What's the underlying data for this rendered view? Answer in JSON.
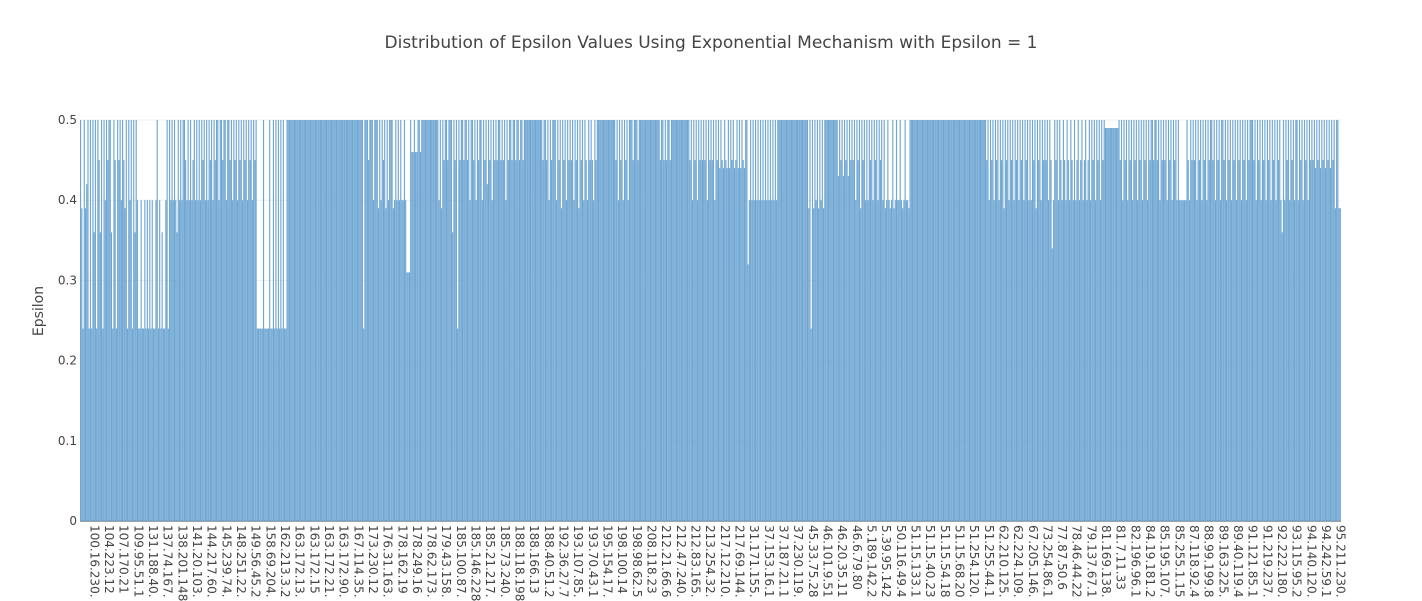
{
  "chart_data": {
    "type": "bar",
    "title": "Distribution of Epsilon Values Using Exponential Mechanism with Epsilon = 1",
    "xlabel": "",
    "ylabel": "Epsilon",
    "ylim": [
      0,
      0.5
    ],
    "yticks": [
      0,
      0.1,
      0.2,
      0.3,
      0.4,
      0.5
    ],
    "ytick_labels": [
      "0",
      "0.1",
      "0.2",
      "0.3",
      "0.4",
      "0.5"
    ],
    "xtick_labels": [
      "100.16.230.",
      "104.223.12",
      "107.170.21",
      "109.95.51.1",
      "131.188.40.",
      "137.74.167.",
      "138.201.148",
      "141.20.103.",
      "144.217.60.",
      "145.239.74.",
      "148.251.22.",
      "149.56.45.2",
      "158.69.204.",
      "162.213.3.2",
      "163.172.13.",
      "163.172.15",
      "163.172.21.",
      "163.172.90.",
      "167.114.35.",
      "173.230.12",
      "176.31.163.",
      "178.162.19",
      "178.249.16",
      "178.62.173.",
      "179.43.158.",
      "185.100.87.",
      "185.146.228",
      "185.21.217.",
      "185.73.240.",
      "188.118.198",
      "188.166.13",
      "188.40.51.2",
      "192.36.27.7",
      "193.107.85.",
      "193.70.43.1",
      "195.154.17.",
      "198.100.14",
      "198.98.62.5",
      "208.118.23",
      "212.21.66.6",
      "212.47.240.",
      "212.83.165.",
      "213.254.32.",
      "217.12.210.",
      "217.69.144.",
      "31.171.155.",
      "37.153.16.1",
      "37.187.21.1",
      "37.230.119.",
      "45.33.75.28",
      "46.101.9.51",
      "46.20.35.11",
      "46.6.79.80",
      "5.189.142.2",
      "5.39.95.142",
      "50.116.49.4",
      "51.15.133.1",
      "51.15.40.23",
      "51.15.54.18",
      "51.15.68.20",
      "51.254.120.",
      "51.255.44.1",
      "62.210.125.",
      "62.224.109.",
      "67.205.146.",
      "73.254.86.1",
      "77.87.50.6",
      "78.46.44.22",
      "79.137.67.1",
      "81.169.138.",
      "81.7.11.33",
      "82.196.96.1",
      "84.19.181.2",
      "85.195.107.",
      "85.255.1.15",
      "87.118.92.4",
      "88.99.199.8",
      "89.163.225.",
      "89.40.119.4",
      "91.121.85.1",
      "91.219.237.",
      "92.222.180.",
      "93.115.95.2",
      "94.140.120.",
      "94.242.59.1",
      "95.211.230."
    ],
    "values_per_category": 12,
    "values": [
      0.5,
      0.39,
      0.24,
      0.5,
      0.39,
      0.42,
      0.5,
      0.24,
      0.5,
      0.24,
      0.5,
      0.36,
      0.5,
      0.24,
      0.5,
      0.45,
      0.36,
      0.5,
      0.24,
      0.5,
      0.4,
      0.5,
      0.45,
      0.5,
      0.5,
      0.36,
      0.24,
      0.5,
      0.45,
      0.24,
      0.5,
      0.45,
      0.5,
      0.4,
      0.5,
      0.45,
      0.39,
      0.5,
      0.24,
      0.5,
      0.4,
      0.5,
      0.24,
      0.5,
      0.36,
      0.5,
      0.4,
      0.24,
      0.24,
      0.4,
      0.24,
      0.24,
      0.4,
      0.24,
      0.4,
      0.24,
      0.4,
      0.24,
      0.4,
      0.24,
      0.24,
      0.4,
      0.5,
      0.24,
      0.4,
      0.24,
      0.36,
      0.24,
      0.24,
      0.4,
      0.5,
      0.24,
      0.5,
      0.4,
      0.5,
      0.4,
      0.5,
      0.4,
      0.36,
      0.5,
      0.4,
      0.5,
      0.4,
      0.5,
      0.5,
      0.45,
      0.4,
      0.5,
      0.4,
      0.5,
      0.4,
      0.45,
      0.5,
      0.4,
      0.5,
      0.4,
      0.5,
      0.4,
      0.5,
      0.45,
      0.5,
      0.4,
      0.5,
      0.4,
      0.5,
      0.45,
      0.5,
      0.4,
      0.5,
      0.45,
      0.5,
      0.5,
      0.4,
      0.5,
      0.5,
      0.45,
      0.5,
      0.5,
      0.4,
      0.5,
      0.5,
      0.45,
      0.5,
      0.4,
      0.5,
      0.45,
      0.5,
      0.4,
      0.5,
      0.45,
      0.5,
      0.4,
      0.5,
      0.45,
      0.5,
      0.4,
      0.5,
      0.45,
      0.5,
      0.4,
      0.5,
      0.45,
      0.5,
      0.24,
      0.24,
      0.24,
      0.24,
      0.24,
      0.5,
      0.24,
      0.24,
      0.24,
      0.24,
      0.5,
      0.24,
      0.24,
      0.5,
      0.24,
      0.5,
      0.24,
      0.5,
      0.24,
      0.5,
      0.24,
      0.5,
      0.24,
      0.24,
      0.5,
      0.5,
      0.5,
      0.5,
      0.5,
      0.5,
      0.5,
      0.5,
      0.5,
      0.5,
      0.5,
      0.5,
      0.5,
      0.5,
      0.5,
      0.5,
      0.5,
      0.5,
      0.5,
      0.5,
      0.5,
      0.5,
      0.5,
      0.5,
      0.5,
      0.5,
      0.5,
      0.5,
      0.5,
      0.5,
      0.5,
      0.5,
      0.5,
      0.5,
      0.5,
      0.5,
      0.5,
      0.5,
      0.5,
      0.5,
      0.5,
      0.5,
      0.5,
      0.5,
      0.5,
      0.5,
      0.5,
      0.5,
      0.5,
      0.5,
      0.5,
      0.5,
      0.5,
      0.5,
      0.5,
      0.5,
      0.5,
      0.5,
      0.5,
      0.5,
      0.5,
      0.5,
      0.24,
      0.5,
      0.5,
      0.5,
      0.45,
      0.5,
      0.5,
      0.5,
      0.4,
      0.5,
      0.5,
      0.5,
      0.39,
      0.5,
      0.4,
      0.5,
      0.45,
      0.5,
      0.39,
      0.5,
      0.4,
      0.5,
      0.5,
      0.5,
      0.39,
      0.4,
      0.5,
      0.4,
      0.5,
      0.4,
      0.5,
      0.4,
      0.4,
      0.5,
      0.4,
      0.31,
      0.31,
      0.31,
      0.5,
      0.46,
      0.46,
      0.5,
      0.46,
      0.46,
      0.5,
      0.5,
      0.46,
      0.5,
      0.5,
      0.5,
      0.5,
      0.5,
      0.5,
      0.5,
      0.5,
      0.5,
      0.5,
      0.5,
      0.5,
      0.5,
      0.5,
      0.4,
      0.5,
      0.39,
      0.5,
      0.45,
      0.5,
      0.5,
      0.45,
      0.5,
      0.5,
      0.5,
      0.36,
      0.5,
      0.45,
      0.5,
      0.24,
      0.5,
      0.45,
      0.5,
      0.5,
      0.45,
      0.5,
      0.5,
      0.45,
      0.5,
      0.4,
      0.5,
      0.5,
      0.45,
      0.5,
      0.4,
      0.5,
      0.45,
      0.5,
      0.5,
      0.4,
      0.5,
      0.45,
      0.5,
      0.42,
      0.5,
      0.45,
      0.5,
      0.4,
      0.5,
      0.45,
      0.5,
      0.45,
      0.5,
      0.5,
      0.45,
      0.5,
      0.45,
      0.5,
      0.4,
      0.5,
      0.45,
      0.5,
      0.5,
      0.45,
      0.5,
      0.5,
      0.45,
      0.5,
      0.5,
      0.45,
      0.5,
      0.5,
      0.45,
      0.5,
      0.5,
      0.5,
      0.5,
      0.5,
      0.5,
      0.5,
      0.5,
      0.5,
      0.5,
      0.5,
      0.5,
      0.5,
      0.5,
      0.5,
      0.45,
      0.5,
      0.5,
      0.45,
      0.5,
      0.4,
      0.5,
      0.45,
      0.5,
      0.5,
      0.5,
      0.4,
      0.5,
      0.45,
      0.5,
      0.39,
      0.5,
      0.45,
      0.5,
      0.4,
      0.5,
      0.45,
      0.5,
      0.45,
      0.5,
      0.4,
      0.5,
      0.45,
      0.5,
      0.39,
      0.5,
      0.45,
      0.5,
      0.4,
      0.5,
      0.45,
      0.4,
      0.5,
      0.45,
      0.5,
      0.45,
      0.4,
      0.5,
      0.45,
      0.5,
      0.5,
      0.5,
      0.5,
      0.5,
      0.5,
      0.5,
      0.5,
      0.5,
      0.5,
      0.5,
      0.5,
      0.5,
      0.5,
      0.5,
      0.45,
      0.5,
      0.4,
      0.5,
      0.45,
      0.5,
      0.4,
      0.5,
      0.45,
      0.5,
      0.4,
      0.5,
      0.5,
      0.5,
      0.45,
      0.5,
      0.5,
      0.5,
      0.45,
      0.5,
      0.5,
      0.5,
      0.5,
      0.5,
      0.5,
      0.5,
      0.5,
      0.5,
      0.5,
      0.5,
      0.5,
      0.5,
      0.5,
      0.5,
      0.5,
      0.5,
      0.45,
      0.5,
      0.5,
      0.45,
      0.5,
      0.45,
      0.5,
      0.5,
      0.45,
      0.5,
      0.5,
      0.5,
      0.5,
      0.5,
      0.5,
      0.5,
      0.5,
      0.5,
      0.5,
      0.5,
      0.5,
      0.5,
      0.5,
      0.5,
      0.45,
      0.5,
      0.4,
      0.5,
      0.45,
      0.5,
      0.4,
      0.5,
      0.45,
      0.5,
      0.45,
      0.5,
      0.45,
      0.5,
      0.4,
      0.5,
      0.45,
      0.5,
      0.45,
      0.5,
      0.4,
      0.5,
      0.45,
      0.5,
      0.44,
      0.5,
      0.45,
      0.44,
      0.5,
      0.45,
      0.44,
      0.5,
      0.44,
      0.5,
      0.45,
      0.5,
      0.44,
      0.45,
      0.5,
      0.44,
      0.5,
      0.44,
      0.5,
      0.45,
      0.44,
      0.5,
      0.5,
      0.32,
      0.4,
      0.5,
      0.4,
      0.5,
      0.4,
      0.5,
      0.4,
      0.5,
      0.4,
      0.5,
      0.4,
      0.5,
      0.4,
      0.5,
      0.4,
      0.5,
      0.4,
      0.5,
      0.4,
      0.5,
      0.4,
      0.5,
      0.4,
      0.5,
      0.5,
      0.5,
      0.5,
      0.5,
      0.5,
      0.5,
      0.5,
      0.5,
      0.5,
      0.5,
      0.5,
      0.5,
      0.5,
      0.5,
      0.5,
      0.5,
      0.5,
      0.5,
      0.5,
      0.5,
      0.5,
      0.5,
      0.5,
      0.5,
      0.39,
      0.5,
      0.24,
      0.5,
      0.39,
      0.5,
      0.4,
      0.5,
      0.39,
      0.5,
      0.4,
      0.5,
      0.39,
      0.5,
      0.5,
      0.5,
      0.5,
      0.5,
      0.5,
      0.5,
      0.5,
      0.5,
      0.5,
      0.5,
      0.43,
      0.5,
      0.45,
      0.5,
      0.43,
      0.5,
      0.45,
      0.5,
      0.43,
      0.5,
      0.45,
      0.5,
      0.45,
      0.5,
      0.4,
      0.5,
      0.45,
      0.5,
      0.39,
      0.5,
      0.45,
      0.5,
      0.4,
      0.5,
      0.4,
      0.5,
      0.45,
      0.5,
      0.4,
      0.5,
      0.45,
      0.5,
      0.4,
      0.5,
      0.45,
      0.5,
      0.4,
      0.5,
      0.39,
      0.4,
      0.5,
      0.4,
      0.39,
      0.4,
      0.5,
      0.39,
      0.4,
      0.5,
      0.4,
      0.4,
      0.5,
      0.4,
      0.39,
      0.4,
      0.5,
      0.4,
      0.4,
      0.39,
      0.5,
      0.5,
      0.5,
      0.5,
      0.5,
      0.5,
      0.5,
      0.5,
      0.5,
      0.5,
      0.5,
      0.5,
      0.5,
      0.5,
      0.5,
      0.5,
      0.5,
      0.5,
      0.5,
      0.5,
      0.5,
      0.5,
      0.5,
      0.5,
      0.5,
      0.5,
      0.5,
      0.5,
      0.5,
      0.5,
      0.5,
      0.5,
      0.5,
      0.5,
      0.5,
      0.5,
      0.5,
      0.5,
      0.5,
      0.5,
      0.5,
      0.5,
      0.5,
      0.5,
      0.5,
      0.5,
      0.5,
      0.5,
      0.5,
      0.5,
      0.5,
      0.5,
      0.5,
      0.5,
      0.5,
      0.5,
      0.5,
      0.5,
      0.5,
      0.5,
      0.5,
      0.5,
      0.45,
      0.5,
      0.4,
      0.5,
      0.45,
      0.5,
      0.4,
      0.5,
      0.45,
      0.5,
      0.4,
      0.5,
      0.45,
      0.5,
      0.39,
      0.5,
      0.45,
      0.5,
      0.4,
      0.5,
      0.45,
      0.5,
      0.4,
      0.5,
      0.45,
      0.5,
      0.4,
      0.5,
      0.45,
      0.5,
      0.4,
      0.5,
      0.45,
      0.5,
      0.4,
      0.5,
      0.4,
      0.5,
      0.45,
      0.5,
      0.39,
      0.5,
      0.45,
      0.5,
      0.4,
      0.5,
      0.45,
      0.5,
      0.45,
      0.5,
      0.4,
      0.5,
      0.45,
      0.34,
      0.4,
      0.5,
      0.45,
      0.5,
      0.4,
      0.5,
      0.45,
      0.4,
      0.5,
      0.45,
      0.4,
      0.5,
      0.45,
      0.4,
      0.5,
      0.45,
      0.4,
      0.5,
      0.4,
      0.45,
      0.5,
      0.4,
      0.45,
      0.5,
      0.4,
      0.45,
      0.5,
      0.4,
      0.45,
      0.5,
      0.4,
      0.5,
      0.45,
      0.5,
      0.4,
      0.5,
      0.45,
      0.5,
      0.4,
      0.5,
      0.45,
      0.5,
      0.49,
      0.49,
      0.49,
      0.49,
      0.49,
      0.49,
      0.49,
      0.49,
      0.49,
      0.49,
      0.49,
      0.5,
      0.45,
      0.5,
      0.4,
      0.5,
      0.45,
      0.5,
      0.4,
      0.5,
      0.45,
      0.5,
      0.4,
      0.5,
      0.45,
      0.5,
      0.4,
      0.5,
      0.45,
      0.5,
      0.4,
      0.5,
      0.45,
      0.5,
      0.4,
      0.5,
      0.45,
      0.5,
      0.5,
      0.45,
      0.5,
      0.5,
      0.45,
      0.5,
      0.4,
      0.5,
      0.45,
      0.5,
      0.45,
      0.5,
      0.4,
      0.5,
      0.45,
      0.5,
      0.4,
      0.5,
      0.45,
      0.5,
      0.4,
      0.5,
      0.4,
      0.4,
      0.4,
      0.4,
      0.4,
      0.4,
      0.5,
      0.45,
      0.4,
      0.5,
      0.45,
      0.5,
      0.45,
      0.5,
      0.4,
      0.5,
      0.45,
      0.5,
      0.4,
      0.5,
      0.45,
      0.5,
      0.4,
      0.5,
      0.45,
      0.5,
      0.5,
      0.45,
      0.5,
      0.4,
      0.5,
      0.45,
      0.5,
      0.4,
      0.5,
      0.5,
      0.45,
      0.5,
      0.4,
      0.5,
      0.45,
      0.5,
      0.4,
      0.5,
      0.45,
      0.5,
      0.4,
      0.5,
      0.45,
      0.5,
      0.4,
      0.5,
      0.45,
      0.5,
      0.4,
      0.5,
      0.45,
      0.5,
      0.5,
      0.5,
      0.45,
      0.5,
      0.4,
      0.5,
      0.45,
      0.5,
      0.4,
      0.5,
      0.45,
      0.5,
      0.4,
      0.5,
      0.45,
      0.5,
      0.4,
      0.5,
      0.45,
      0.5,
      0.4,
      0.5,
      0.45,
      0.5,
      0.4,
      0.36,
      0.5,
      0.4,
      0.5,
      0.45,
      0.5,
      0.4,
      0.5,
      0.45,
      0.5,
      0.4,
      0.5,
      0.5,
      0.4,
      0.5,
      0.45,
      0.5,
      0.4,
      0.5,
      0.45,
      0.5,
      0.4,
      0.5,
      0.45,
      0.5,
      0.45,
      0.5,
      0.44,
      0.5,
      0.45,
      0.5,
      0.44,
      0.5,
      0.45,
      0.5,
      0.44,
      0.5,
      0.45,
      0.5,
      0.44,
      0.5,
      0.45,
      0.5,
      0.39,
      0.5,
      0.5,
      0.39,
      0.39
    ],
    "grid": true,
    "legend": "none",
    "bar_color": "#6fa6d2",
    "bar_stroke": "#5b94c4"
  }
}
